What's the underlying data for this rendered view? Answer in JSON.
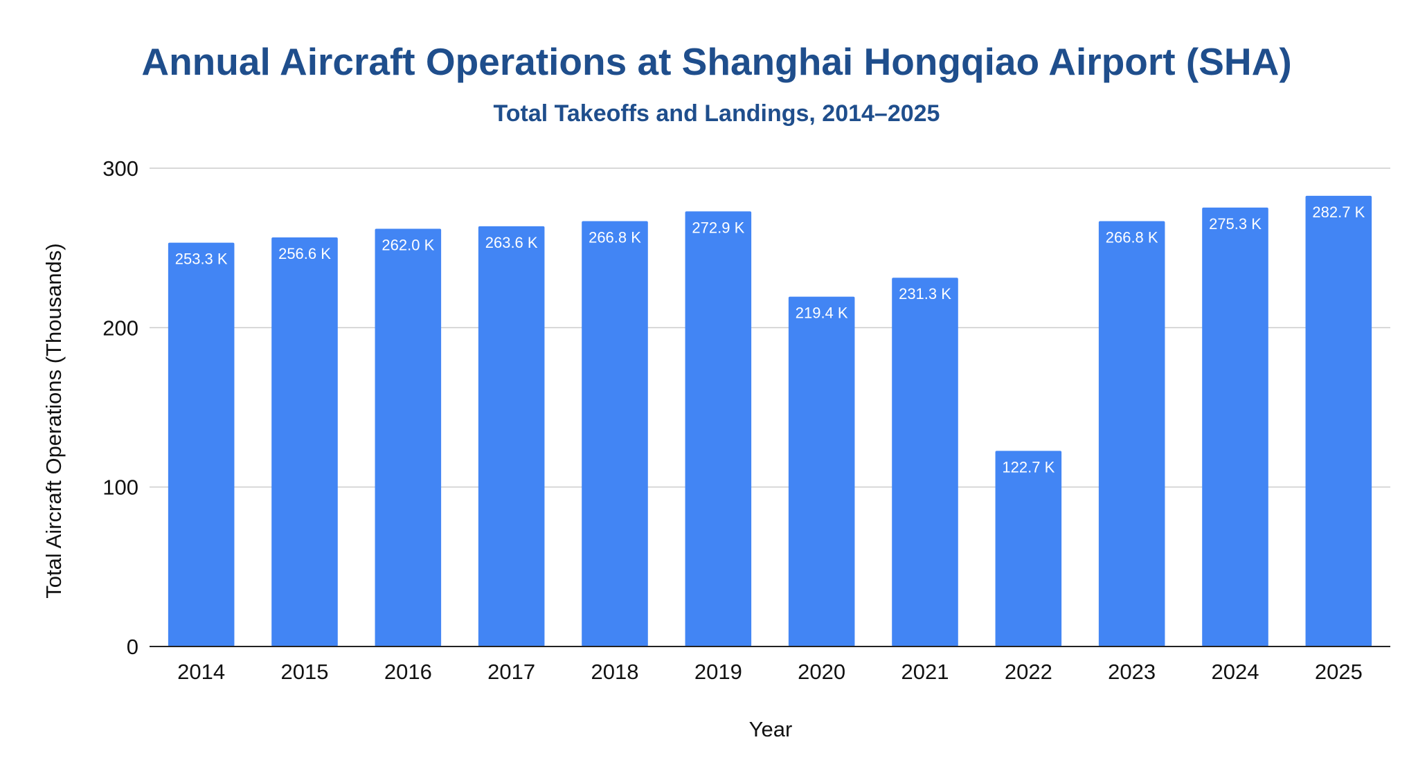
{
  "colors": {
    "title": "#1f4e8c",
    "bar": "#4285f4",
    "grid": "#cccccc",
    "axis": "#222222",
    "bar_label": "#ffffff"
  },
  "chart_data": {
    "type": "bar",
    "title": "Annual Aircraft Operations at Shanghai Hongqiao Airport (SHA)",
    "subtitle": "Total Takeoffs and Landings, 2014–2025",
    "xlabel": "Year",
    "ylabel": "Total Aircraft Operations (Thousands)",
    "ylim": [
      0,
      300
    ],
    "yticks": [
      0,
      100,
      200,
      300
    ],
    "grid": true,
    "legend": "none",
    "categories": [
      "2014",
      "2015",
      "2016",
      "2017",
      "2018",
      "2019",
      "2020",
      "2021",
      "2022",
      "2023",
      "2024",
      "2025"
    ],
    "values": [
      253.3,
      256.6,
      262.0,
      263.6,
      266.8,
      272.9,
      219.4,
      231.3,
      122.7,
      266.8,
      275.3,
      282.7
    ],
    "data_labels": [
      "253.3 K",
      "256.6 K",
      "262.0 K",
      "263.6 K",
      "266.8 K",
      "272.9 K",
      "219.4 K",
      "231.3 K",
      "122.7 K",
      "266.8 K",
      "275.3 K",
      "282.7 K"
    ]
  }
}
